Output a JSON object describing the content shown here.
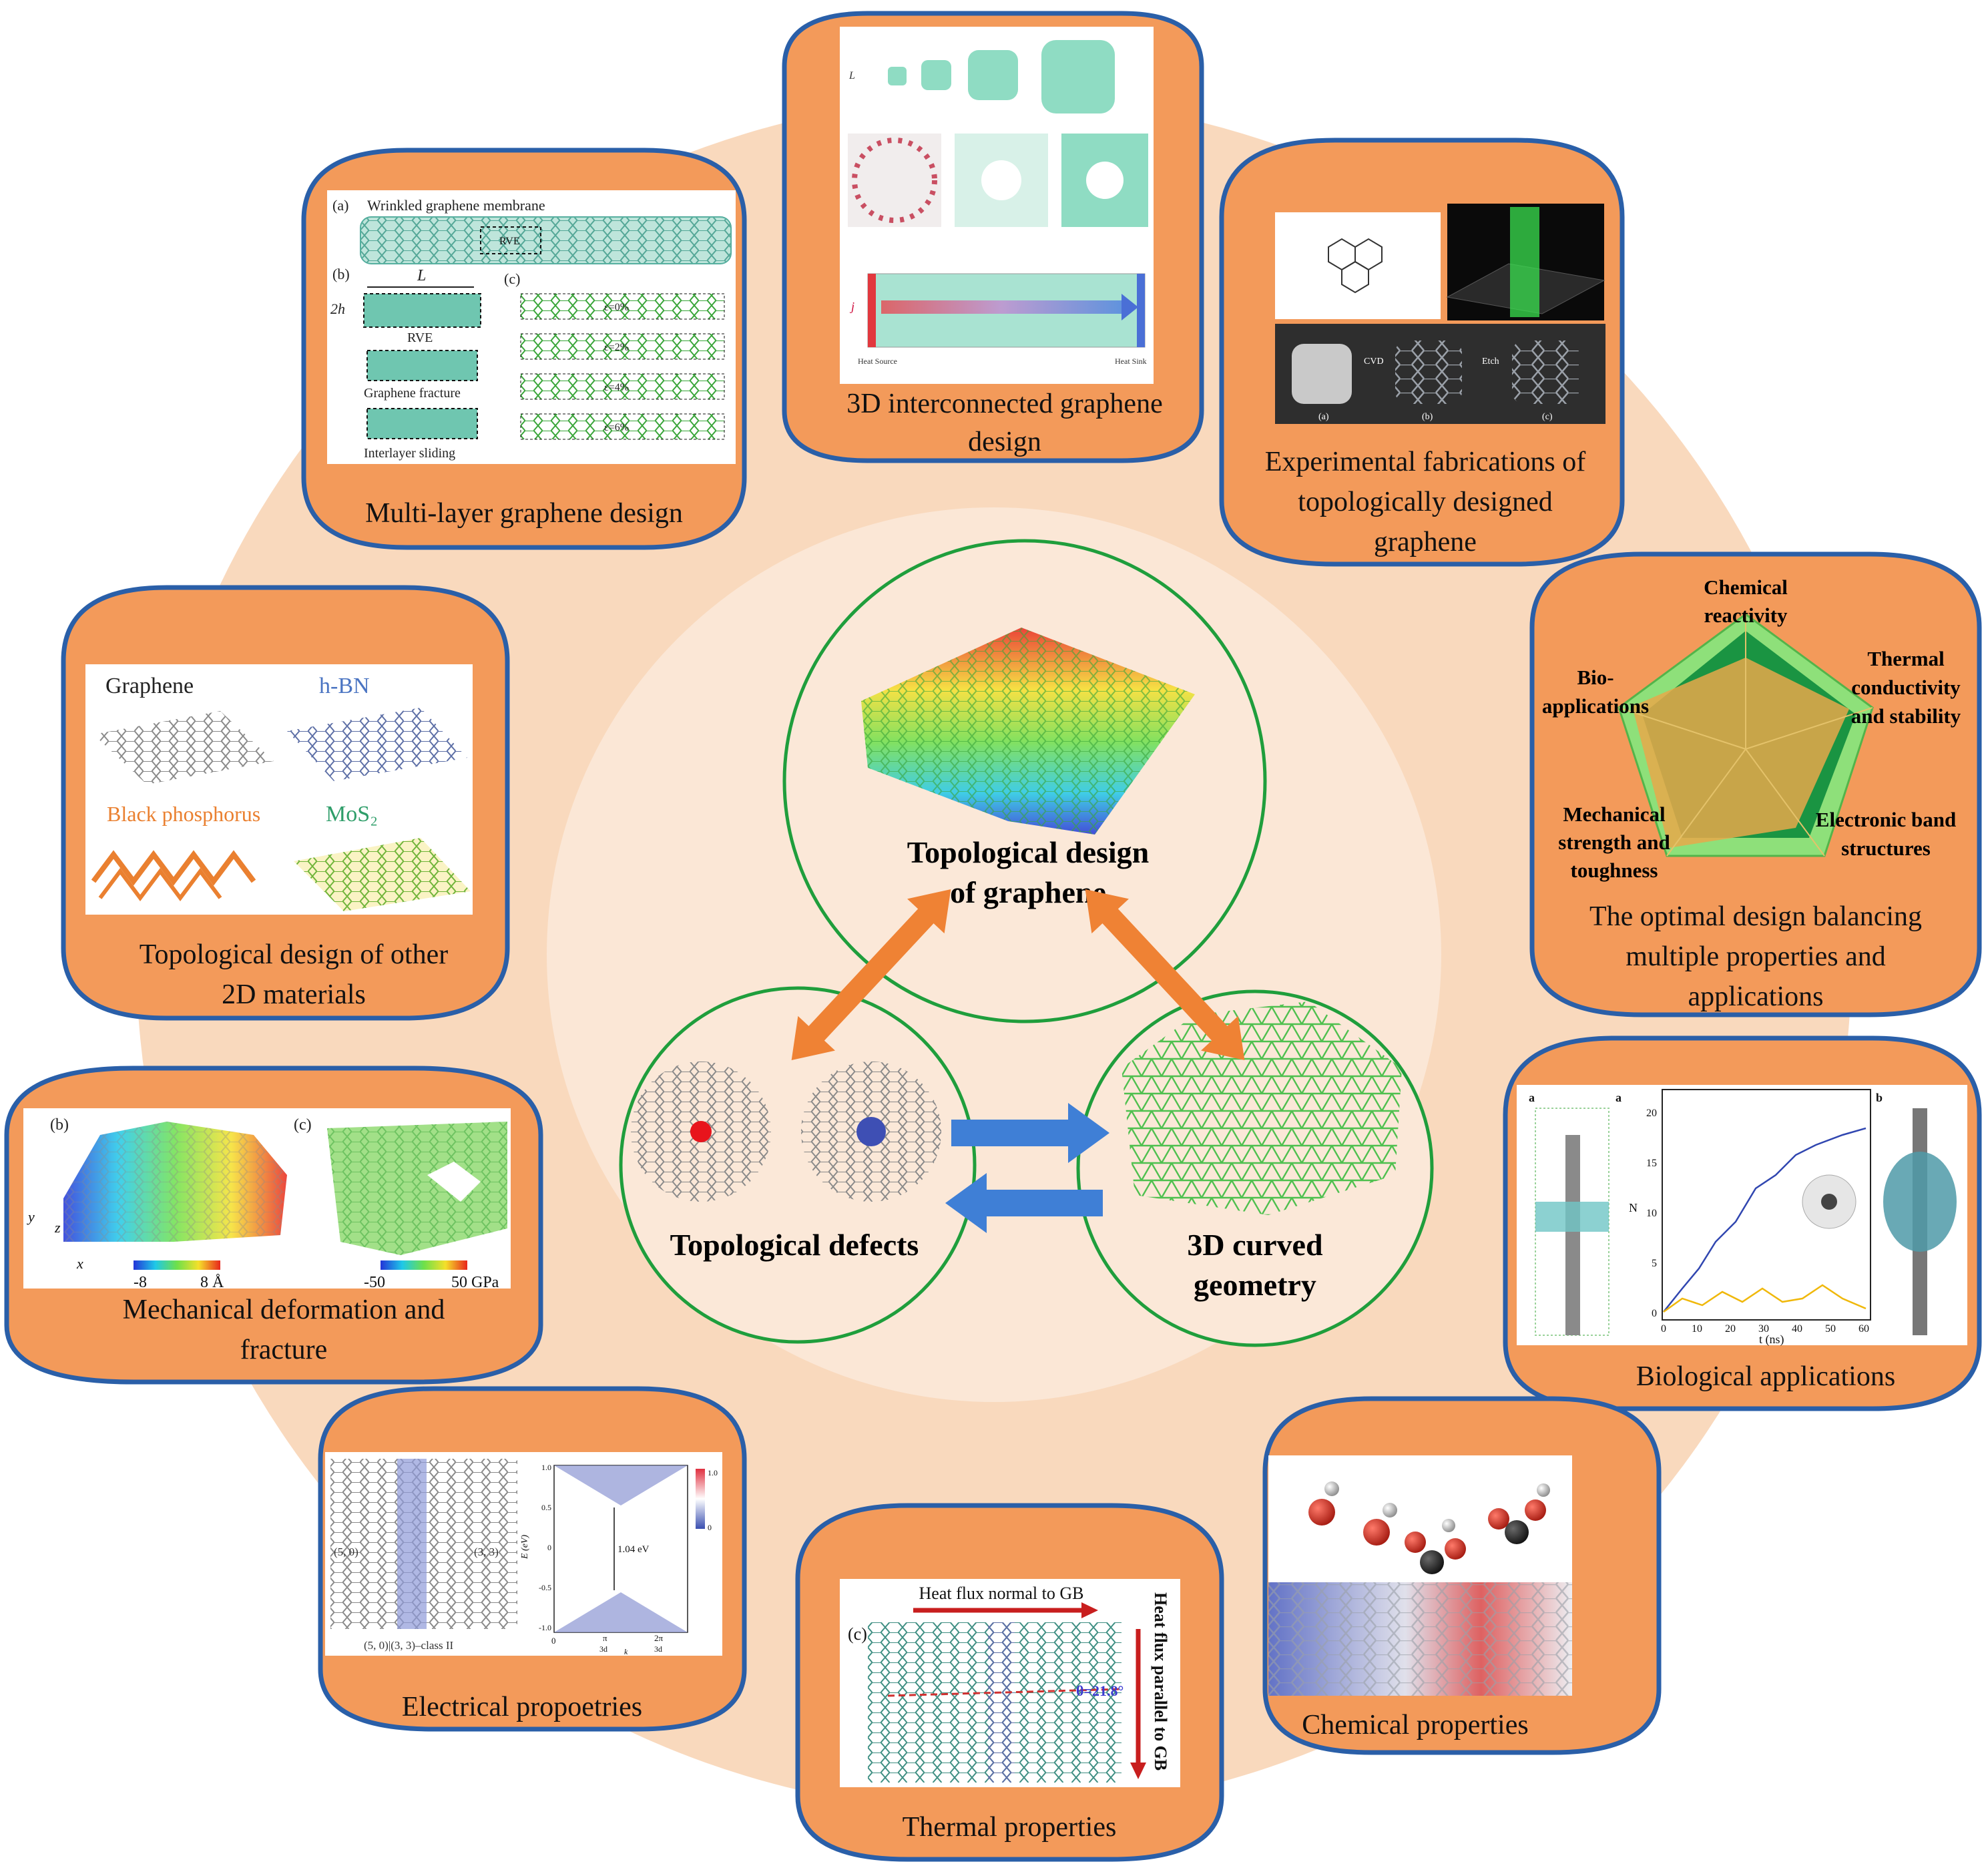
{
  "colors": {
    "big_circle": "#f9d9bd",
    "inner_circle": "#fbe7d6",
    "bubble": "#f39a5a",
    "bubble_stroke": "#2a5fa8",
    "node_stroke": "#1f9e3c",
    "arrow_orange": "#ef8234",
    "arrow_blue": "#3f7fd6",
    "graphene_teal": "#6fc6b0",
    "graphene_green": "#72d86c"
  },
  "center": {
    "top": {
      "line1": "Topological design",
      "line2": "of graphene"
    },
    "left": {
      "label": "Topological defects"
    },
    "right": {
      "line1": "3D curved",
      "line2": "geometry"
    }
  },
  "panels": {
    "multilayer": {
      "caption": "Multi-layer graphene design",
      "title": "Wrinkled graphene membrane",
      "tag_a": "(a)",
      "tag_b": "(b)",
      "tag_c": "(c)",
      "rve": "RVE",
      "L": "L",
      "h0": "2h",
      "fracture": "Graphene fracture",
      "sliding": "Interlayer sliding",
      "strain0": "ε=0%",
      "strain2": "ε=2%",
      "strain4": "ε=4%",
      "strain6": "ε=6%"
    },
    "interconnected": {
      "caption_line1": "3D interconnected graphene",
      "caption_line2": "design",
      "heat_source": "Heat Source",
      "heat_sink": "Heat Sink",
      "L": "L",
      "j": "j"
    },
    "fabrication": {
      "caption_line1": "Experimental fabrications of",
      "caption_line2": "topologically designed",
      "caption_line3": "graphene",
      "cvd": "CVD",
      "etch": "Etch",
      "tag_a": "(a)",
      "tag_b": "(b)",
      "tag_c": "(c)"
    },
    "optimal": {
      "caption_line1": "The optimal design balancing",
      "caption_line2": "multiple properties and",
      "caption_line3": "applications",
      "axis1_line1": "Chemical",
      "axis1_line2": "reactivity",
      "axis2_line1": "Thermal",
      "axis2_line2": "conductivity",
      "axis2_line3": "and stability",
      "axis3_line1": "Electronic band",
      "axis3_line2": "structures",
      "axis4_line1": "Mechanical",
      "axis4_line2": "strength and",
      "axis4_line3": "toughness",
      "axis5_line1": "Bio-",
      "axis5_line2": "applications"
    },
    "other2d": {
      "caption_line1": "Topological design of other",
      "caption_line2": "2D materials",
      "graphene": "Graphene",
      "hbn": "h-BN",
      "bp": "Black phosphorus",
      "mos2": "MoS₂"
    },
    "mechanical": {
      "caption_line1": "Mechanical deformation and",
      "caption_line2": "fracture",
      "tag_b": "(b)",
      "tag_c": "(c)",
      "scale1_min": "-8",
      "scale1_max": "8 Å",
      "scale2_min": "-50",
      "scale2_max": "50 GPa",
      "ax_y": "y",
      "ax_z": "z",
      "ax_x": "x"
    },
    "biological": {
      "caption": "Biological applications",
      "tag_a": "a",
      "tag_a2": "a",
      "tag_b": "b",
      "ylabel": "N",
      "xlabel": "t (ns)",
      "yticks": [
        "0",
        "5",
        "10",
        "15",
        "20"
      ],
      "xticks": [
        "0",
        "10",
        "20",
        "30",
        "40",
        "50",
        "60"
      ]
    },
    "electrical": {
      "caption": "Electrical propoetries",
      "left_vec": "(5, 0)",
      "right_vec": "(3, 3)",
      "bottom": "(5, 0)|(3, 3)–class II",
      "gap": "1.04 eV",
      "ylabel": "E (eV)",
      "xlabel": "k",
      "yticks": [
        "1.0",
        "0.5",
        "0",
        "-0.5",
        "-1.0"
      ],
      "cbar_max": "1.0",
      "cbar_min": "0",
      "xt1": "π",
      "xt1b": "3d",
      "xt2": "2π",
      "xt2b": "3d",
      "xt0": "0"
    },
    "thermal": {
      "caption": "Thermal properties",
      "flux_normal": "Heat flux normal to GB",
      "flux_parallel": "Heat flux parallel to GB",
      "tag_c": "(c)",
      "angle": "θ=21.8°"
    },
    "chemical": {
      "caption": "Chemical properties"
    }
  }
}
